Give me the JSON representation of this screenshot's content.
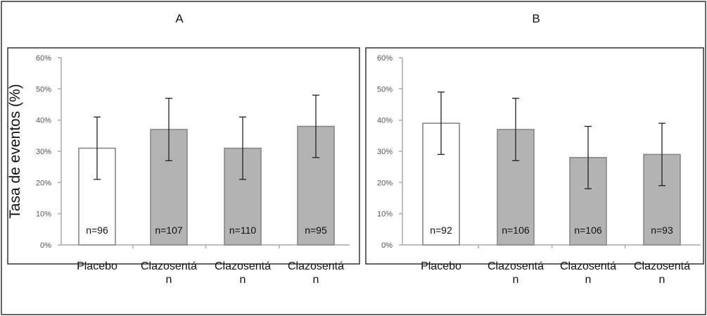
{
  "figure": {
    "ylabel": "Tasa de eventos (%)"
  },
  "chart_data": [
    {
      "type": "bar",
      "title": "A",
      "ylabel": "Tasa de eventos (%)",
      "ylim": [
        0,
        60
      ],
      "yticks": [
        "0%",
        "10%",
        "20%",
        "30%",
        "40%",
        "50%",
        "60%"
      ],
      "categories": [
        [
          "Placebo"
        ],
        [
          "Clazosentá",
          "n"
        ],
        [
          "Clazosentá",
          "n"
        ],
        [
          "Clazosentá",
          "n"
        ]
      ],
      "values": [
        31,
        37,
        31,
        38
      ],
      "error_low": [
        21,
        27,
        21,
        28
      ],
      "error_high": [
        41,
        47,
        41,
        48
      ],
      "n_labels": [
        "n=96",
        "n=107",
        "n=110",
        "n=95"
      ],
      "colors": [
        "#ffffff",
        "#b3b3b3",
        "#b3b3b3",
        "#b3b3b3"
      ]
    },
    {
      "type": "bar",
      "title": "B",
      "ylim": [
        0,
        60
      ],
      "yticks": [
        "0%",
        "10%",
        "20%",
        "30%",
        "40%",
        "50%",
        "60%"
      ],
      "categories": [
        [
          "Placebo"
        ],
        [
          "Clazosentá",
          "n"
        ],
        [
          "Clazosentá",
          "n"
        ],
        [
          "Clazosentá",
          "n"
        ]
      ],
      "values": [
        39,
        37,
        28,
        29
      ],
      "error_low": [
        29,
        27,
        18,
        19
      ],
      "error_high": [
        49,
        47,
        38,
        39
      ],
      "n_labels": [
        "n=92",
        "n=106",
        "n=106",
        "n=93"
      ],
      "colors": [
        "#ffffff",
        "#b3b3b3",
        "#b3b3b3",
        "#b3b3b3"
      ]
    }
  ]
}
